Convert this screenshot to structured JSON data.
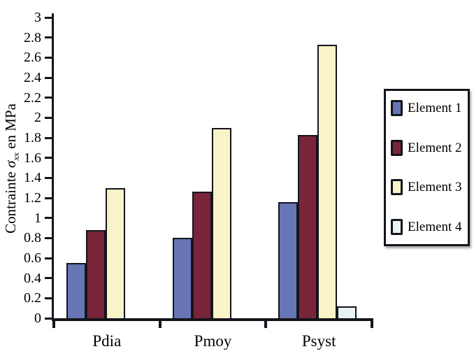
{
  "figure": {
    "background": "#ffffff",
    "axis_color": "#14141c",
    "text_color": "#000000"
  },
  "chart_data": {
    "type": "bar",
    "categories": [
      "Pdia",
      "Pmoy",
      "Psyst"
    ],
    "series": [
      {
        "name": "Element 1",
        "color": "#6775b5",
        "values": [
          0.55,
          0.8,
          1.16
        ]
      },
      {
        "name": "Element 2",
        "color": "#792539",
        "values": [
          0.88,
          1.26,
          1.83
        ]
      },
      {
        "name": "Element 3",
        "color": "#f8f4c8",
        "values": [
          1.3,
          1.9,
          2.73
        ]
      },
      {
        "name": "Element 4",
        "color": "#e6f3f2",
        "values": [
          0,
          0,
          0.12
        ]
      }
    ],
    "ylabel": "Contrainte σxx en MPa",
    "ylabel_parts": {
      "prefix": "Contrainte ",
      "symbol": "σ",
      "subscript": "xx",
      "suffix": " en MPa"
    },
    "xlabel": "",
    "ylim": [
      0,
      3
    ],
    "ytick_labels": [
      "0",
      "0.2",
      "0.4",
      "0.6",
      "0.8",
      "1",
      "1.2",
      "1.4",
      "1.6",
      "1.8",
      "2",
      "2.2",
      "2.4",
      "2.6",
      "2.8",
      "3"
    ],
    "grid": false,
    "legend": {
      "position": "right"
    }
  }
}
